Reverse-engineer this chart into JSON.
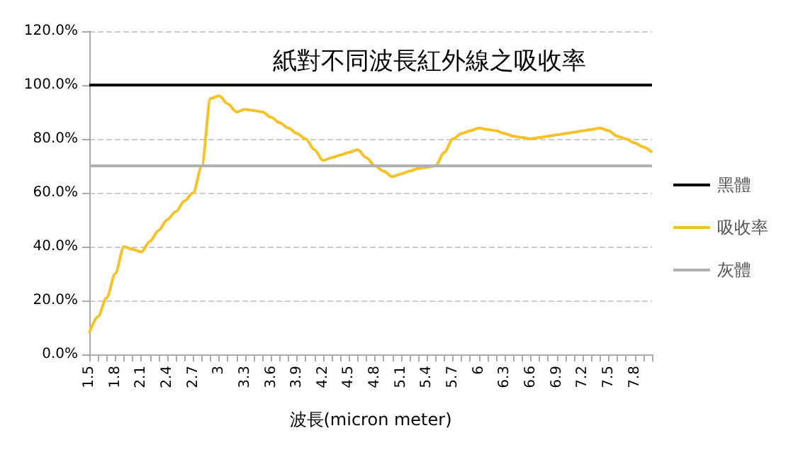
{
  "chart_data": {
    "type": "line",
    "title": "紙對不同波長紅外線之吸收率",
    "xlabel": "波長(micron meter)",
    "categories": [
      "1.5",
      null,
      null,
      "1.8",
      null,
      null,
      "2.1",
      null,
      null,
      "2.4",
      null,
      null,
      "2.7",
      null,
      null,
      "3",
      null,
      null,
      "3.3",
      null,
      null,
      "3.6",
      null,
      null,
      "3.9",
      null,
      null,
      "4.2",
      null,
      null,
      "4.5",
      null,
      null,
      "4.8",
      null,
      null,
      "5.1",
      null,
      null,
      "5.4",
      null,
      null,
      "5.7",
      null,
      null,
      "6",
      null,
      null,
      "6.3",
      null,
      null,
      "6.6",
      null,
      null,
      "6.9",
      null,
      null,
      "7.2",
      null,
      null,
      "7.5",
      null,
      null,
      "7.8",
      null,
      null
    ],
    "series": [
      {
        "name": "黑體",
        "color": "#000000",
        "values": [
          100,
          100,
          100,
          100,
          100,
          100,
          100,
          100,
          100,
          100,
          100,
          100,
          100,
          100,
          100,
          100,
          100,
          100,
          100,
          100,
          100,
          100,
          100,
          100,
          100,
          100,
          100,
          100,
          100,
          100,
          100,
          100,
          100,
          100,
          100,
          100,
          100,
          100,
          100,
          100,
          100,
          100,
          100,
          100,
          100,
          100,
          100,
          100,
          100,
          100,
          100,
          100,
          100,
          100,
          100,
          100,
          100,
          100,
          100,
          100,
          100,
          100,
          100,
          100,
          100,
          100
        ]
      },
      {
        "name": "吸收率",
        "color": "#f5c22a",
        "values": [
          8,
          14,
          21,
          30,
          40,
          39,
          38,
          42,
          46,
          50,
          53,
          57,
          60,
          70,
          95,
          96,
          93,
          90,
          91,
          90.5,
          90,
          88,
          86,
          84,
          82,
          80,
          76,
          72,
          73,
          74,
          75,
          76,
          73,
          70,
          68,
          66,
          67,
          68,
          69,
          69.5,
          70,
          75,
          80,
          82,
          83,
          84,
          83.5,
          83,
          82,
          81,
          80.5,
          80,
          80.5,
          81,
          81.5,
          82,
          82.5,
          83,
          83.5,
          84,
          83,
          81,
          80,
          78.5,
          77,
          75
        ]
      },
      {
        "name": "灰體",
        "color": "#b0b0b0",
        "values": [
          70,
          70,
          70,
          70,
          70,
          70,
          70,
          70,
          70,
          70,
          70,
          70,
          70,
          70,
          70,
          70,
          70,
          70,
          70,
          70,
          70,
          70,
          70,
          70,
          70,
          70,
          70,
          70,
          70,
          70,
          70,
          70,
          70,
          70,
          70,
          70,
          70,
          70,
          70,
          70,
          70,
          70,
          70,
          70,
          70,
          70,
          70,
          70,
          70,
          70,
          70,
          70,
          70,
          70,
          70,
          70,
          70,
          70,
          70,
          70,
          70,
          70,
          70,
          70,
          70,
          70
        ]
      }
    ],
    "ylim": [
      0,
      120
    ],
    "yticks": [
      {
        "value": 0,
        "label": "0.0%"
      },
      {
        "value": 20,
        "label": "20.0%"
      },
      {
        "value": 40,
        "label": "40.0%"
      },
      {
        "value": 60,
        "label": "60.0%"
      },
      {
        "value": 80,
        "label": "80.0%"
      },
      {
        "value": 100,
        "label": "100.0%"
      },
      {
        "value": 120,
        "label": "120.0%"
      }
    ],
    "grid": "y",
    "legend": "right",
    "marker": "none",
    "line_style": "solid"
  }
}
